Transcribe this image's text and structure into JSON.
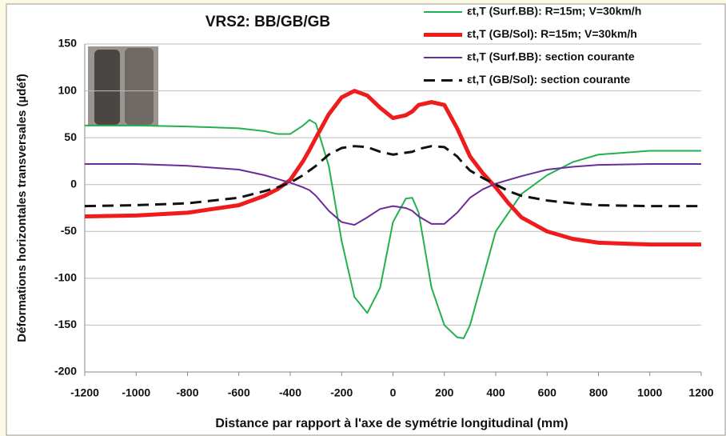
{
  "chart_data": {
    "type": "line",
    "title": "VRS2: BB/GB/GB",
    "xlabel": "Distance par rapport à l'axe de symétrie longitudinal (mm)",
    "ylabel": "Déformations horizontales  transversales  (µdéf)",
    "x": [
      -1200,
      -1000,
      -800,
      -600,
      -500,
      -450,
      -400,
      -350,
      -325,
      -300,
      -250,
      -200,
      -150,
      -100,
      -50,
      0,
      50,
      75,
      100,
      150,
      200,
      250,
      275,
      300,
      350,
      400,
      450,
      500,
      600,
      700,
      800,
      1000,
      1200
    ],
    "series": [
      {
        "name": "εt,T (Surf.BB): R=15m; V=30km/h",
        "color": "#22b14c",
        "width": 2,
        "linestyle": "solid",
        "values": [
          63,
          63,
          62,
          60,
          57,
          54,
          54,
          63,
          69,
          65,
          20,
          -60,
          -120,
          -137,
          -110,
          -40,
          -15,
          -14,
          -30,
          -110,
          -150,
          -163,
          -164,
          -150,
          -100,
          -50,
          -30,
          -10,
          10,
          24,
          32,
          36,
          36
        ]
      },
      {
        "name": "εt,T (GB/Sol): R=15m; V=30km/h",
        "color": "#ee1c1c",
        "width": 5,
        "linestyle": "solid",
        "values": [
          -34,
          -33,
          -30,
          -22,
          -12,
          -5,
          5,
          25,
          37,
          50,
          75,
          93,
          100,
          95,
          82,
          71,
          74,
          78,
          85,
          88,
          85,
          60,
          45,
          30,
          12,
          -3,
          -20,
          -35,
          -50,
          -58,
          -62,
          -64,
          -64
        ]
      },
      {
        "name": "εt,T (Surf.BB): section courante",
        "color": "#6a2c9a",
        "width": 2,
        "linestyle": "solid",
        "values": [
          22,
          22,
          20,
          16,
          10,
          6,
          2,
          -3,
          -6,
          -12,
          -28,
          -40,
          -43,
          -35,
          -26,
          -23,
          -25,
          -28,
          -34,
          -42,
          -42,
          -30,
          -22,
          -14,
          -5,
          1,
          5,
          9,
          16,
          19,
          21,
          22,
          22
        ]
      },
      {
        "name": "εt,T (GB/Sol): section courante",
        "color": "#111111",
        "width": 3,
        "linestyle": "dashed",
        "values": [
          -23,
          -22,
          -20,
          -14,
          -7,
          -3,
          2,
          10,
          15,
          20,
          32,
          39,
          41,
          40,
          35,
          32,
          34,
          35,
          38,
          41,
          40,
          30,
          22,
          15,
          7,
          0,
          -7,
          -12,
          -17,
          -20,
          -22,
          -23,
          -23
        ]
      }
    ],
    "xlim": [
      -1200,
      1200
    ],
    "xticks": [
      -1200,
      -1000,
      -800,
      -600,
      -400,
      -200,
      0,
      200,
      400,
      600,
      800,
      1000,
      1200
    ],
    "ylim": [
      -200,
      150
    ],
    "yticks": [
      -200,
      -150,
      -100,
      -50,
      0,
      50,
      100,
      150
    ],
    "grid": true,
    "legend": "upper right"
  }
}
